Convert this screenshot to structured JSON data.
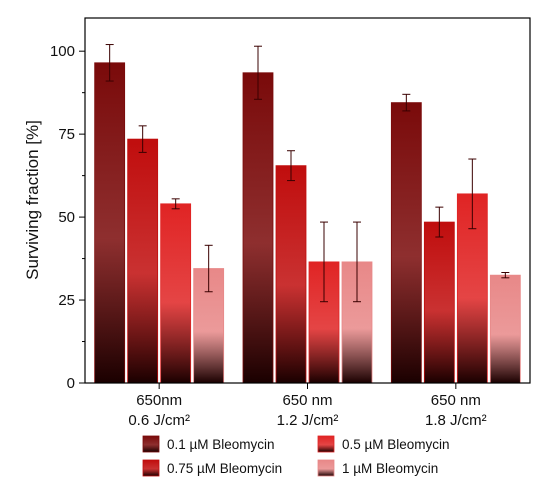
{
  "chart_data": {
    "type": "bar",
    "ylabel": "Surviving fraction [%]",
    "ylim": [
      0,
      110
    ],
    "yticks": [
      0,
      25,
      50,
      75,
      100
    ],
    "categories": [
      [
        "650nm",
        "0.6 J/cm²"
      ],
      [
        "650 nm",
        "1.2 J/cm²"
      ],
      [
        "650 nm",
        "1.8 J/cm²"
      ]
    ],
    "series": [
      {
        "name": "0.1 µM Bleomycin",
        "values": [
          96.5,
          93.5,
          84.5
        ],
        "errors": [
          5.5,
          8.0,
          2.5
        ],
        "color": "#7a0a0a"
      },
      {
        "name": "0.75 µM Bleomycin",
        "values": [
          73.5,
          65.5,
          48.5
        ],
        "errors": [
          4.0,
          4.5,
          4.5
        ],
        "color": "#c00d0d"
      },
      {
        "name": "0.5 µM Bleomycin",
        "values": [
          54.0,
          36.5,
          57.0
        ],
        "errors": [
          1.5,
          12.0,
          10.5
        ],
        "color": "#e02424"
      },
      {
        "name": "1 µM Bleomycin",
        "values": [
          34.5,
          36.5,
          32.5
        ],
        "errors": [
          7.0,
          12.0,
          0.8
        ],
        "color": "#e88888"
      }
    ],
    "legend_order": [
      0,
      2,
      1,
      3
    ],
    "legend_position": "bottom"
  }
}
